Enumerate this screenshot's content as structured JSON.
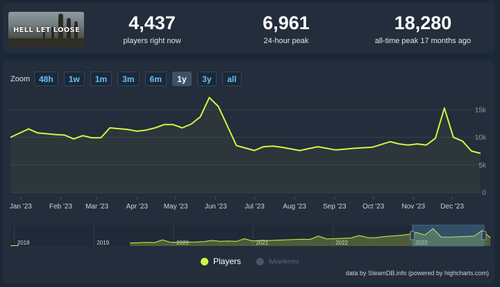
{
  "game": {
    "logo_text": "HELL LET LOOSE"
  },
  "stats": [
    {
      "value": "4,437",
      "label": "players right now"
    },
    {
      "value": "6,961",
      "label": "24-hour peak"
    },
    {
      "value": "18,280",
      "label": "all-time peak 17 months ago"
    }
  ],
  "zoom": {
    "label": "Zoom",
    "buttons": [
      "48h",
      "1w",
      "1m",
      "3m",
      "6m",
      "1y",
      "3y",
      "all"
    ],
    "active": "1y"
  },
  "legend": {
    "players": "Players",
    "markers": "Markers"
  },
  "credit": "data by SteamDB.info (powered by highcharts.com)",
  "colors": {
    "series": "#d4f542",
    "background": "#1b2838",
    "panel": "#232d3b",
    "button_text": "#66c0f4"
  },
  "chart_data": {
    "type": "line",
    "series": [
      {
        "name": "Players",
        "x": [
          "2022-12-24",
          "2023-01-07",
          "2023-01-14",
          "2023-01-28",
          "2023-02-04",
          "2023-02-11",
          "2023-02-18",
          "2023-02-25",
          "2023-03-04",
          "2023-03-11",
          "2023-03-25",
          "2023-04-01",
          "2023-04-08",
          "2023-04-15",
          "2023-04-22",
          "2023-04-29",
          "2023-05-06",
          "2023-05-13",
          "2023-05-20",
          "2023-05-27",
          "2023-06-03",
          "2023-06-17",
          "2023-07-01",
          "2023-07-08",
          "2023-07-15",
          "2023-07-22",
          "2023-08-05",
          "2023-08-19",
          "2023-09-02",
          "2023-09-16",
          "2023-09-30",
          "2023-10-07",
          "2023-10-14",
          "2023-10-21",
          "2023-10-28",
          "2023-11-04",
          "2023-11-11",
          "2023-11-18",
          "2023-11-25",
          "2023-12-02",
          "2023-12-09",
          "2023-12-16",
          "2023-12-23"
        ],
        "y": [
          10000,
          11500,
          10800,
          10500,
          10400,
          9700,
          10300,
          9900,
          9900,
          11700,
          11400,
          11100,
          11300,
          11700,
          12300,
          12300,
          11700,
          12400,
          13700,
          17200,
          15600,
          8500,
          7600,
          8300,
          8400,
          8200,
          7600,
          8300,
          7700,
          8000,
          8200,
          8700,
          9200,
          8800,
          8600,
          8800,
          8600,
          9800,
          15300,
          10000,
          9300,
          7500,
          7100
        ]
      }
    ],
    "x_tick_labels": [
      "Jan '23",
      "Feb '23",
      "Mar '23",
      "Apr '23",
      "May '23",
      "Jun '23",
      "Jul '23",
      "Aug '23",
      "Sep '23",
      "Oct '23",
      "Nov '23",
      "Dec '23"
    ],
    "y_tick_labels": [
      "0",
      "5k",
      "10k",
      "15k"
    ],
    "ylim": [
      0,
      18000
    ],
    "grid": true,
    "legend_position": "bottom",
    "navigator": {
      "year_labels": [
        "2018",
        "2019",
        "2020",
        "2021",
        "2022",
        "2023"
      ],
      "data_start_year": 2019.45,
      "values": [
        1800,
        2000,
        2400,
        2200,
        5200,
        2400,
        2600,
        2700,
        2800,
        3200,
        4500,
        3600,
        3800,
        3500,
        6400,
        4000,
        4600,
        4400,
        4800,
        5200,
        5400,
        5800,
        5600,
        9200,
        6200,
        6400,
        6800,
        7200,
        9800,
        7600,
        7400,
        8600,
        9400,
        10000,
        11000,
        13000,
        10400,
        17200,
        8200,
        8000,
        8400,
        8800,
        9200,
        15300,
        7300
      ],
      "selected_range": [
        "2023-01-01",
        "2023-12-31"
      ]
    },
    "title": "",
    "xlabel": "",
    "ylabel": ""
  }
}
